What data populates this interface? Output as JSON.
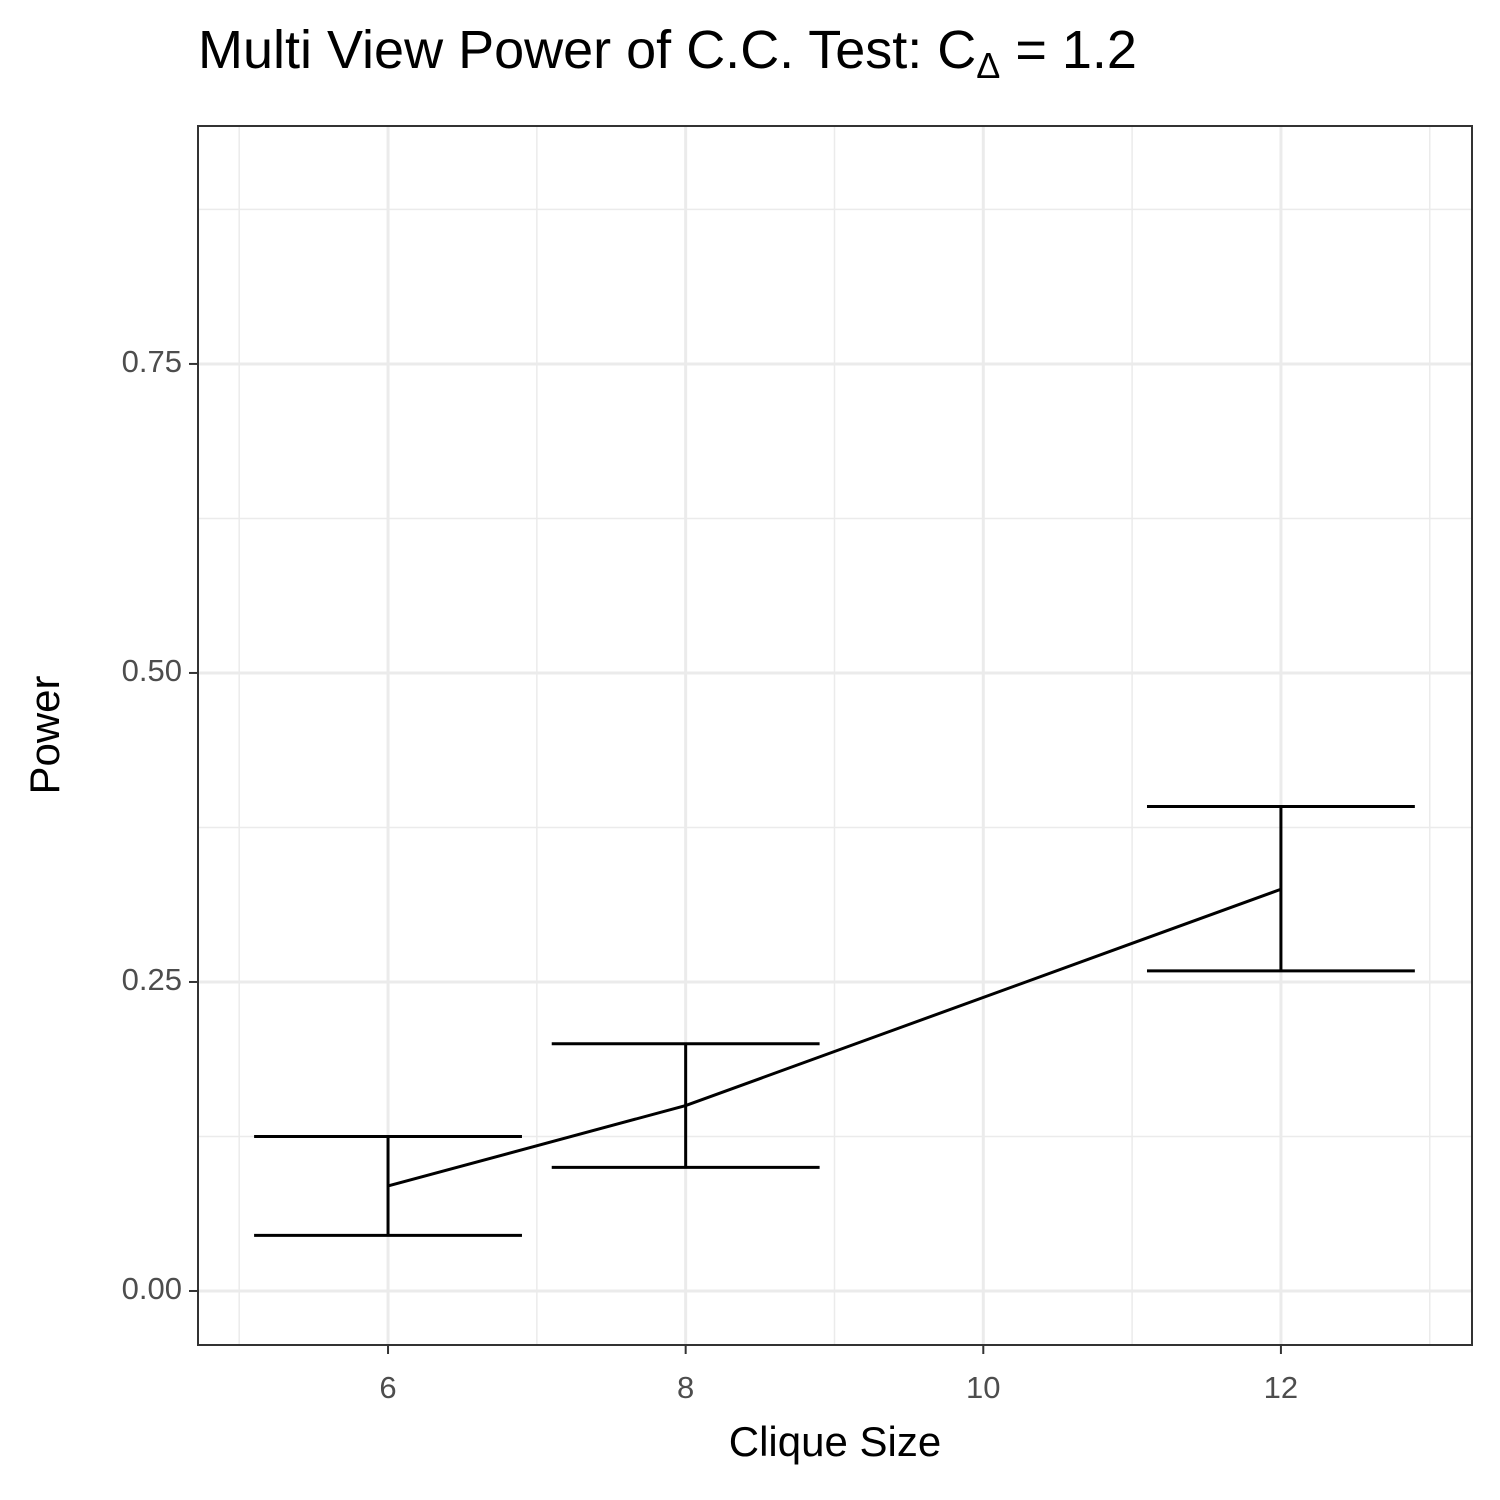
{
  "chart_data": {
    "type": "line_errorbar",
    "title": {
      "text": "Multi View Power of C.C. Test: C",
      "subscript": "Δ",
      "suffix": " = 1.2"
    },
    "x_label": "Clique Size",
    "y_label": "Power",
    "x": [
      6,
      8,
      12
    ],
    "series": [
      {
        "color": "#000000",
        "values": [
          0.085,
          0.15,
          0.325
        ],
        "lower": [
          0.045,
          0.1,
          0.259
        ],
        "upper": [
          0.125,
          0.2,
          0.392
        ]
      }
    ],
    "xlim": [
      4.723,
      13.284
    ],
    "ylim": [
      -0.0437,
      0.9425
    ],
    "xticks": [
      6,
      8,
      10,
      12
    ],
    "yticks": [
      {
        "value": 0,
        "label": "0.00"
      },
      {
        "value": 0.25,
        "label": "0.25"
      },
      {
        "value": 0.5,
        "label": "0.50"
      },
      {
        "value": 0.75,
        "label": "0.75"
      }
    ],
    "x_minor_ticks": [
      5,
      7,
      9,
      11,
      13
    ],
    "y_minor_ticks": [
      0.125,
      0.375,
      0.625,
      0.875
    ],
    "grid": true
  }
}
